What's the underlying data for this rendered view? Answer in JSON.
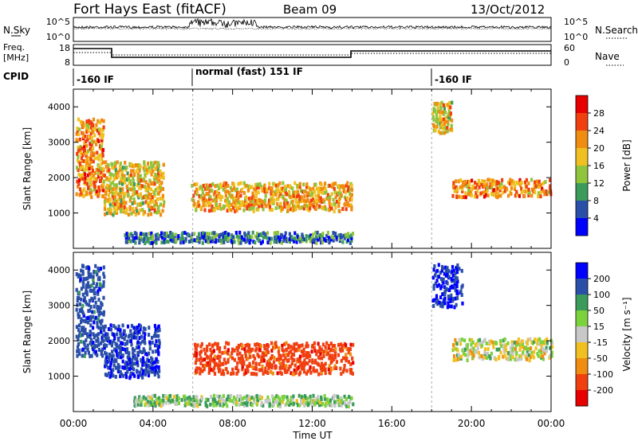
{
  "header": {
    "site": "Fort Hays East (fitACF)",
    "beam": "Beam 09",
    "date": "13/Oct/2012"
  },
  "panels": {
    "nsky": {
      "left_label": "N.Sky",
      "right_label": "N.Search",
      "left_ticks": [
        "10^5",
        "10^0"
      ],
      "right_ticks": [
        "10^5",
        "10^0"
      ]
    },
    "freq": {
      "left_label_1": "Freq.",
      "left_label_2": "[MHz]",
      "right_label": "Nave",
      "left_ticks": [
        "18",
        "8"
      ],
      "right_ticks": [
        "60",
        "0"
      ]
    },
    "cpid": {
      "label": "CPID",
      "segments": [
        {
          "label": "-160 IF",
          "start": 0.0,
          "end": 6.0
        },
        {
          "label": "normal (fast) 151 IF",
          "start": 6.0,
          "end": 18.0
        },
        {
          "label": "-160 IF",
          "start": 18.0,
          "end": 24.0
        }
      ]
    }
  },
  "colorbars": {
    "power": {
      "label": "Power [dB]",
      "ticks": [
        "28",
        "24",
        "20",
        "16",
        "12",
        "8",
        "4"
      ],
      "colors": [
        "#0000ff",
        "#2a4fa8",
        "#3b9b5a",
        "#8fc43c",
        "#f0c020",
        "#f08c10",
        "#f04010",
        "#e80000"
      ]
    },
    "velocity": {
      "label": "Velocity [m s⁻¹]",
      "ticks": [
        "200",
        "100",
        "50",
        "15",
        "-15",
        "-50",
        "-100",
        "-200"
      ],
      "colors": [
        "#0000ff",
        "#2a4fa8",
        "#3b9b5a",
        "#7cd23c",
        "#c8c8c8",
        "#f0c020",
        "#f08c10",
        "#f04010",
        "#e80000"
      ]
    }
  },
  "axes": {
    "ylabel": "Slant Range [km]",
    "yticks": [
      "1000",
      "2000",
      "3000",
      "4000"
    ],
    "xlabel": "Time UT",
    "xticks": [
      "00:00",
      "04:00",
      "08:00",
      "12:00",
      "16:00",
      "20:00",
      "00:00"
    ]
  },
  "chart_data": [
    {
      "type": "heatmap",
      "title": "Power",
      "xlabel": "Time UT",
      "ylabel": "Slant Range [km]",
      "xlim": [
        0,
        24
      ],
      "ylim": [
        0,
        4500
      ],
      "colorbar": "Power [dB]",
      "clim": [
        0,
        32
      ],
      "regions": [
        {
          "t0": 0.1,
          "t1": 1.5,
          "r0": 1500,
          "r1": 3700,
          "v": 22
        },
        {
          "t0": 1.5,
          "t1": 4.5,
          "r0": 1000,
          "r1": 2500,
          "v": 18
        },
        {
          "t0": 5.9,
          "t1": 14.0,
          "r0": 1100,
          "r1": 1900,
          "v": 20
        },
        {
          "t0": 18.0,
          "t1": 19.0,
          "r0": 3300,
          "r1": 4200,
          "v": 18
        },
        {
          "t0": 19.0,
          "t1": 24.0,
          "r0": 1500,
          "r1": 2000,
          "v": 22
        },
        {
          "t0": 2.5,
          "t1": 14.0,
          "r0": 200,
          "r1": 500,
          "v": 8
        }
      ]
    },
    {
      "type": "heatmap",
      "title": "Velocity",
      "xlabel": "Time UT",
      "ylabel": "Slant Range [km]",
      "xlim": [
        0,
        24
      ],
      "ylim": [
        0,
        4500
      ],
      "colorbar": "Velocity [m s⁻¹]",
      "clim": [
        -250,
        250
      ],
      "regions": [
        {
          "t0": 0.1,
          "t1": 1.5,
          "r0": 1600,
          "r1": 4200,
          "v": 150
        },
        {
          "t0": 1.5,
          "t1": 4.3,
          "r0": 1000,
          "r1": 2500,
          "v": 180
        },
        {
          "t0": 6.0,
          "t1": 14.0,
          "r0": 1100,
          "r1": 2000,
          "v": -150
        },
        {
          "t0": 18.0,
          "t1": 19.5,
          "r0": 3000,
          "r1": 4200,
          "v": 200
        },
        {
          "t0": 19.0,
          "t1": 24.0,
          "r0": 1500,
          "r1": 2100,
          "v": 0
        },
        {
          "t0": 3.0,
          "t1": 14.0,
          "r0": 200,
          "r1": 500,
          "v": 40
        }
      ]
    }
  ]
}
